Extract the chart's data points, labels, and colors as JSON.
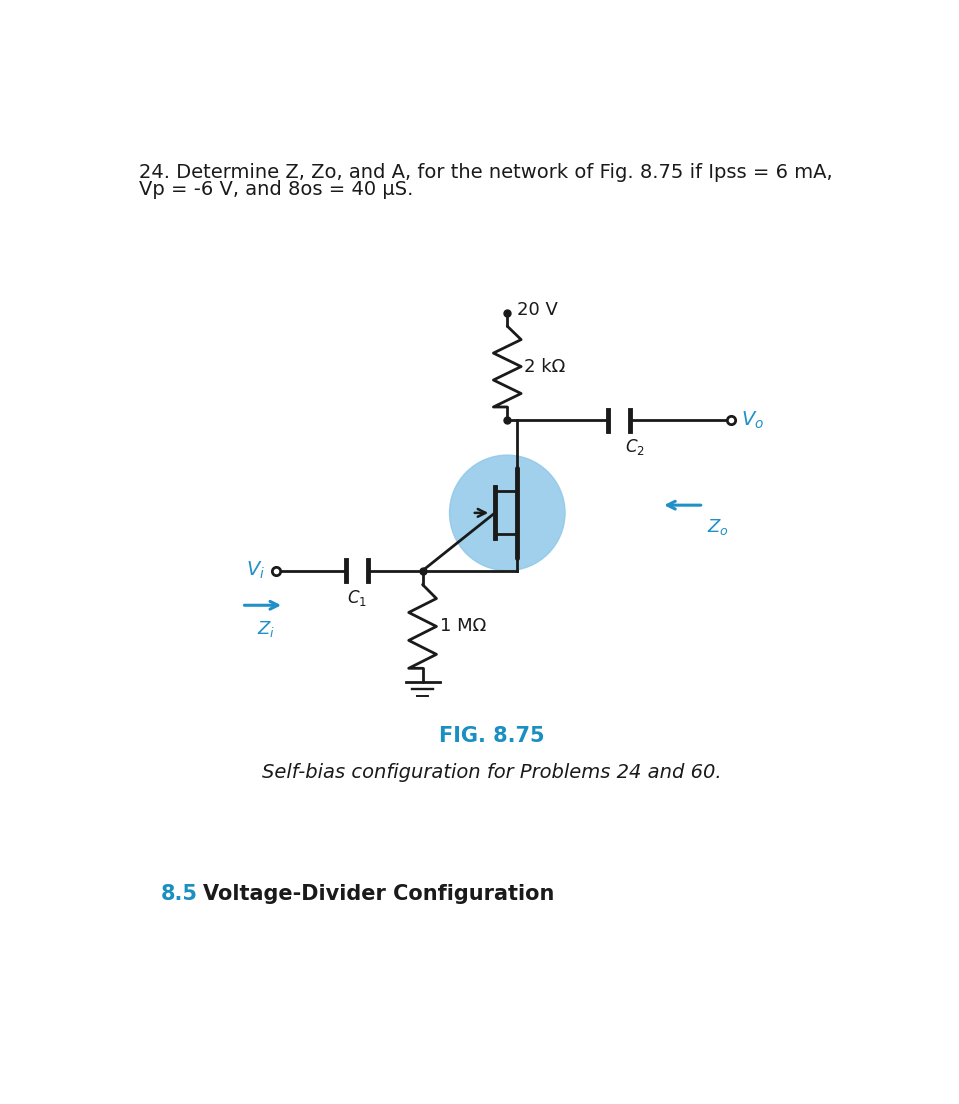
{
  "title_line1": "24. Determine Z, Zo, and A, for the network of Fig. 8.75 if Ipss = 6 mA,",
  "title_line2": "Vp = -6 V, and 8os = 40 μS.",
  "fig_label": "FIG. 8.75",
  "fig_caption": "Self-bias configuration for Problems 24 and 60.",
  "section_label": "8.5",
  "section_title": "Voltage-Divider Configuration",
  "voltage_label": "20 V",
  "rd_label": "2 kΩ",
  "rs_label": "1 MΩ",
  "vi_label": "$V_i$",
  "vo_label": "$V_o$",
  "c1_label": "$C_1$",
  "c2_label": "$C_2$",
  "zi_label": "$Z_i$",
  "zo_label": "$Z_o$",
  "bg_color": "#ffffff",
  "text_color": "#1a1a1a",
  "blue_color": "#2090C8",
  "fig_label_color": "#1a8fc1",
  "section_num_color": "#1a8fc1",
  "transistor_circle_color": "#90c8e8",
  "line_color": "#1a1a1a",
  "lw": 2.0
}
